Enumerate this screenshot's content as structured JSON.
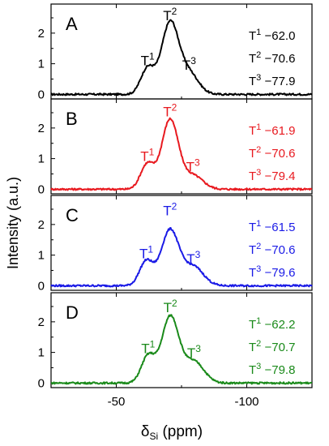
{
  "figure": {
    "ylabel": "Intensity (a.u.)",
    "xlabel_main": "δ",
    "xlabel_sub": "Si",
    "xlabel_unit": " (ppm)"
  },
  "chart_data": [
    {
      "type": "line",
      "panel_label": "A",
      "color": "#000000",
      "xlim": [
        -25,
        -125
      ],
      "ylim": [
        -0.15,
        2.95
      ],
      "y_ticks": [
        "0",
        "1",
        "2"
      ],
      "peak_labels": [
        {
          "base": "T",
          "sup": "1",
          "x": -62.0,
          "y": 0.95
        },
        {
          "base": "T",
          "sup": "2",
          "x": -70.6,
          "y": 2.42
        },
        {
          "base": "T",
          "sup": "3",
          "x": -77.9,
          "y": 0.8
        }
      ],
      "annotations": [
        {
          "base": "T",
          "sup": "1",
          "value": " −62.0"
        },
        {
          "base": "T",
          "sup": "2",
          "value": " −70.6"
        },
        {
          "base": "T",
          "sup": "3",
          "value": " −77.9"
        }
      ],
      "peaks": [
        {
          "center": -62.0,
          "height": 0.85,
          "width": 2.6
        },
        {
          "center": -70.6,
          "height": 2.32,
          "width": 3.3
        },
        {
          "center": -77.9,
          "height": 0.68,
          "width": 3.6
        }
      ]
    },
    {
      "type": "line",
      "panel_label": "B",
      "color": "#e8191f",
      "xlim": [
        -25,
        -125
      ],
      "ylim": [
        -0.15,
        2.95
      ],
      "y_ticks": [
        "0",
        "1",
        "2"
      ],
      "peak_labels": [
        {
          "base": "T",
          "sup": "1",
          "x": -61.9,
          "y": 0.92
        },
        {
          "base": "T",
          "sup": "2",
          "x": -70.6,
          "y": 2.38
        },
        {
          "base": "T",
          "sup": "3",
          "x": -79.4,
          "y": 0.58
        }
      ],
      "annotations": [
        {
          "base": "T",
          "sup": "1",
          "value": " −61.9"
        },
        {
          "base": "T",
          "sup": "2",
          "value": " −70.6"
        },
        {
          "base": "T",
          "sup": "3",
          "value": " −79.4"
        }
      ],
      "peaks": [
        {
          "center": -61.9,
          "height": 0.82,
          "width": 2.6
        },
        {
          "center": -70.6,
          "height": 2.27,
          "width": 3.2
        },
        {
          "center": -79.4,
          "height": 0.45,
          "width": 3.8
        }
      ]
    },
    {
      "type": "line",
      "panel_label": "C",
      "color": "#1a1ae6",
      "xlim": [
        -25,
        -125
      ],
      "ylim": [
        -0.15,
        2.95
      ],
      "y_ticks": [
        "0",
        "1",
        "2"
      ],
      "peak_labels": [
        {
          "base": "T",
          "sup": "1",
          "x": -61.5,
          "y": 0.9
        },
        {
          "base": "T",
          "sup": "2",
          "x": -70.6,
          "y": 2.3
        },
        {
          "base": "T",
          "sup": "3",
          "x": -79.6,
          "y": 0.73
        }
      ],
      "annotations": [
        {
          "base": "T",
          "sup": "1",
          "value": " −61.5"
        },
        {
          "base": "T",
          "sup": "2",
          "value": " −70.6"
        },
        {
          "base": "T",
          "sup": "3",
          "value": " −79.6"
        }
      ],
      "peaks": [
        {
          "center": -61.5,
          "height": 0.8,
          "width": 2.6
        },
        {
          "center": -70.6,
          "height": 1.82,
          "width": 3.4
        },
        {
          "center": -79.6,
          "height": 0.62,
          "width": 3.8
        }
      ]
    },
    {
      "type": "line",
      "panel_label": "D",
      "color": "#1a8a1a",
      "xlim": [
        -25,
        -125
      ],
      "ylim": [
        -0.15,
        2.95
      ],
      "y_ticks": [
        "0",
        "1",
        "2"
      ],
      "peak_labels": [
        {
          "base": "T",
          "sup": "1",
          "x": -62.2,
          "y": 0.98
        },
        {
          "base": "T",
          "sup": "2",
          "x": -70.7,
          "y": 2.32
        },
        {
          "base": "T",
          "sup": "3",
          "x": -79.8,
          "y": 0.83
        }
      ],
      "annotations": [
        {
          "base": "T",
          "sup": "1",
          "value": " −62.2"
        },
        {
          "base": "T",
          "sup": "2",
          "value": " −70.7"
        },
        {
          "base": "T",
          "sup": "3",
          "value": " −79.8"
        }
      ],
      "peaks": [
        {
          "center": -62.2,
          "height": 0.88,
          "width": 2.6
        },
        {
          "center": -70.7,
          "height": 2.17,
          "width": 3.3
        },
        {
          "center": -79.8,
          "height": 0.7,
          "width": 3.8
        }
      ]
    }
  ],
  "x_axis": {
    "ticks": [
      {
        "value": -50,
        "label": "-50"
      },
      {
        "value": -100,
        "label": "-100"
      }
    ]
  }
}
